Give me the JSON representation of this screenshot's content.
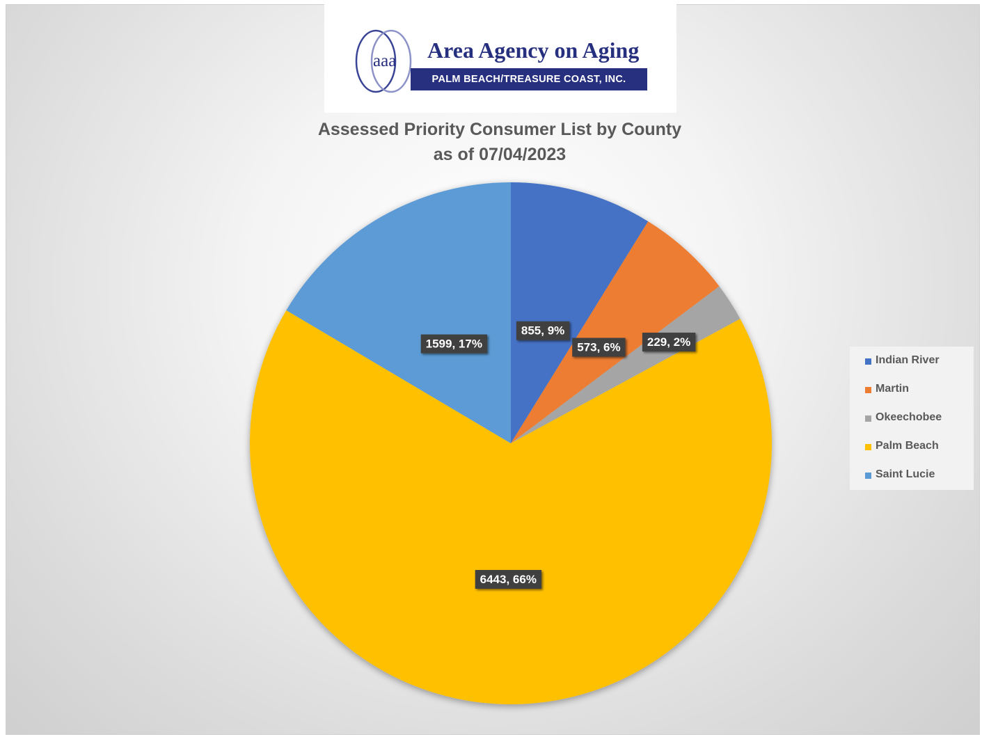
{
  "logo": {
    "mark_text": "aaa",
    "name": "Area Agency on Aging",
    "subtitle": "PALM BEACH/TREASURE COAST, INC.",
    "colors": {
      "navy": "#27307f",
      "ring": "#3a4496"
    }
  },
  "chart_data": {
    "type": "pie",
    "title": "Assessed Priority Consumer List by County",
    "subtitle": "as of 07/04/2023",
    "slices": [
      {
        "name": "Indian River",
        "value": 855,
        "percent": 9,
        "label": "855, 9%",
        "color": "#4472c4"
      },
      {
        "name": "Martin",
        "value": 573,
        "percent": 6,
        "label": "573, 6%",
        "color": "#ed7d31"
      },
      {
        "name": "Okeechobee",
        "value": 229,
        "percent": 2,
        "label": "229, 2%",
        "color": "#a5a5a5"
      },
      {
        "name": "Palm Beach",
        "value": 6443,
        "percent": 66,
        "label": "6443, 66%",
        "color": "#ffc000"
      },
      {
        "name": "Saint Lucie",
        "value": 1599,
        "percent": 17,
        "label": "1599, 17%",
        "color": "#5b9bd5"
      }
    ],
    "legend_position": "right",
    "data_label_style": "dark callout boxes with white text"
  }
}
